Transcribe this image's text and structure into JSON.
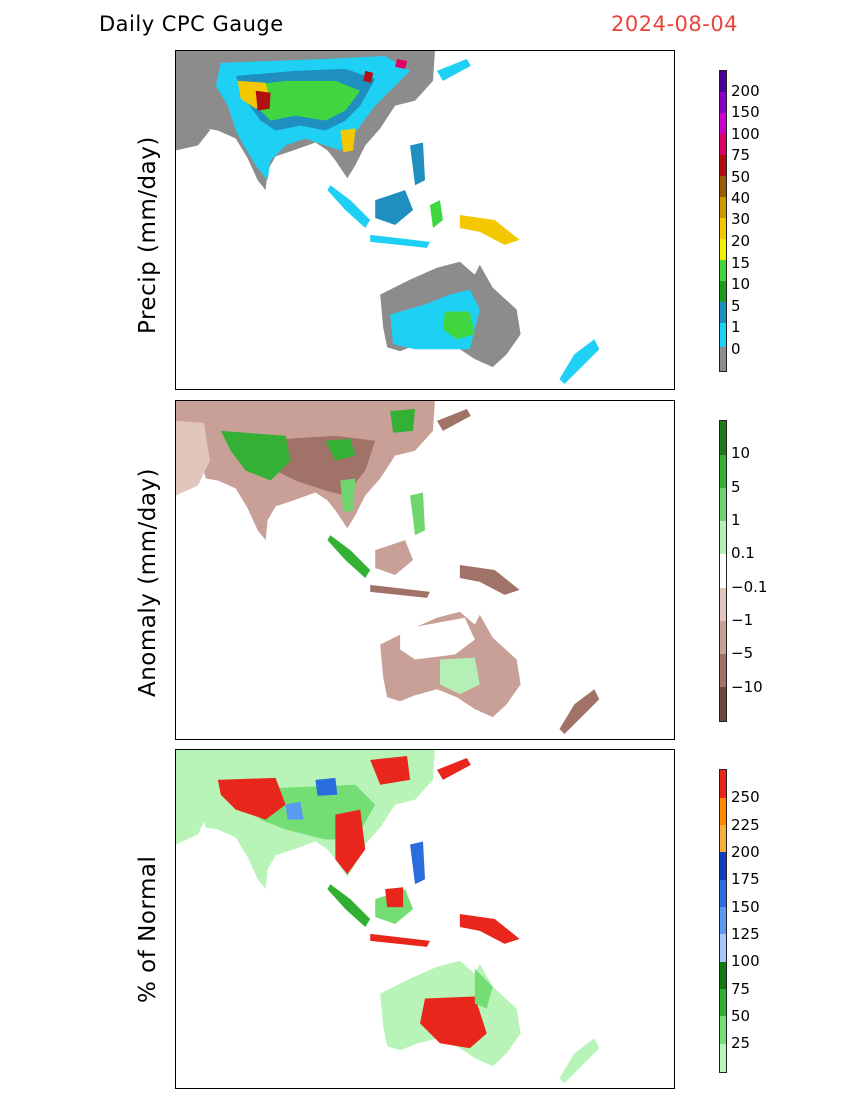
{
  "header": {
    "title": "Daily CPC Gauge",
    "date": "2024-08-04",
    "date_color": "#e8443c"
  },
  "panels": [
    {
      "ylabel": "Precip (mm/day)",
      "colorbar": {
        "labels": [
          "200",
          "150",
          "100",
          "75",
          "50",
          "40",
          "30",
          "20",
          "15",
          "10",
          "5",
          "1",
          "0"
        ],
        "colors": [
          "#4b0095",
          "#8a00c7",
          "#c800c8",
          "#e0006a",
          "#b01010",
          "#9c5a00",
          "#cf9700",
          "#f4c800",
          "#f2f200",
          "#3fd63f",
          "#1b9e1b",
          "#1f8fbf",
          "#1fd0f5",
          "#8c8c8c"
        ]
      }
    },
    {
      "ylabel": "Anomaly (mm/day)",
      "colorbar": {
        "labels": [
          "10",
          "5",
          "1",
          "0.1",
          "−0.1",
          "−1",
          "−5",
          "−10"
        ],
        "colors": [
          "#1c7a1c",
          "#34b034",
          "#6fd66f",
          "#b5efb5",
          "#ffffff",
          "#e2c6bd",
          "#c8a098",
          "#a07268",
          "#6e4640"
        ]
      }
    },
    {
      "ylabel": "% of Normal",
      "colorbar": {
        "labels": [
          "250",
          "225",
          "200",
          "175",
          "150",
          "125",
          "100",
          "75",
          "50",
          "25"
        ],
        "colors": [
          "#e8261c",
          "#ff8a00",
          "#f7b040",
          "#1040c0",
          "#2a6ede",
          "#5a9af0",
          "#a4c6f8",
          "#127a12",
          "#30b030",
          "#74de74",
          "#b8f4b8"
        ]
      }
    }
  ]
}
